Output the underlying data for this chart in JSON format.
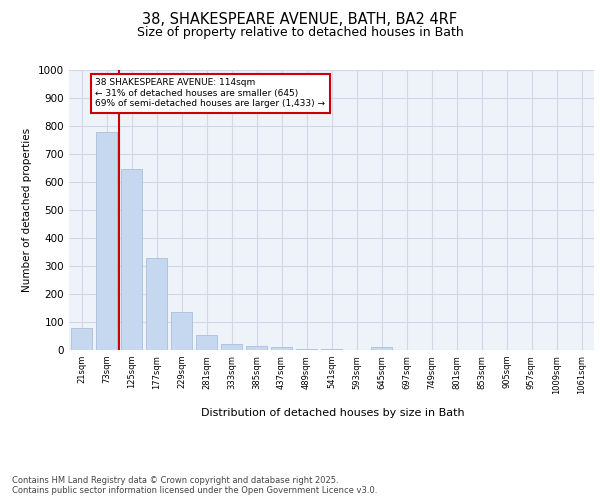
{
  "title_line1": "38, SHAKESPEARE AVENUE, BATH, BA2 4RF",
  "title_line2": "Size of property relative to detached houses in Bath",
  "xlabel": "Distribution of detached houses by size in Bath",
  "ylabel": "Number of detached properties",
  "bar_color": "#c5d8f0",
  "bar_edge_color": "#a0b8d8",
  "categories": [
    "21sqm",
    "73sqm",
    "125sqm",
    "177sqm",
    "229sqm",
    "281sqm",
    "333sqm",
    "385sqm",
    "437sqm",
    "489sqm",
    "541sqm",
    "593sqm",
    "645sqm",
    "697sqm",
    "749sqm",
    "801sqm",
    "853sqm",
    "905sqm",
    "957sqm",
    "1009sqm",
    "1061sqm"
  ],
  "values": [
    80,
    780,
    645,
    330,
    135,
    55,
    20,
    15,
    10,
    5,
    3,
    0,
    10,
    0,
    0,
    0,
    0,
    0,
    0,
    0,
    0
  ],
  "ylim": [
    0,
    1000
  ],
  "yticks": [
    0,
    100,
    200,
    300,
    400,
    500,
    600,
    700,
    800,
    900,
    1000
  ],
  "red_line_x": 1.5,
  "annotation_text": "38 SHAKESPEARE AVENUE: 114sqm\n← 31% of detached houses are smaller (645)\n69% of semi-detached houses are larger (1,433) →",
  "annotation_box_color": "#ffffff",
  "annotation_text_color": "#000000",
  "red_line_color": "#cc0000",
  "grid_color": "#d0d8e8",
  "background_color": "#eef2f9",
  "footer_text": "Contains HM Land Registry data © Crown copyright and database right 2025.\nContains public sector information licensed under the Open Government Licence v3.0.",
  "fig_width": 6.0,
  "fig_height": 5.0,
  "dpi": 100
}
